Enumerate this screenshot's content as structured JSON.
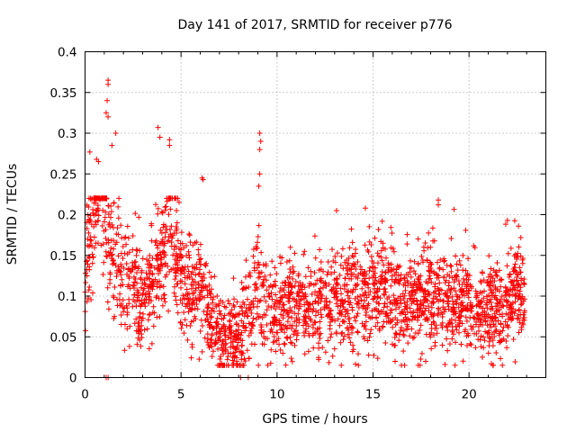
{
  "chart_data": {
    "type": "scatter",
    "title": "Day 141 of 2017, SRMTID for receiver p776",
    "xlabel": "GPS time / hours",
    "ylabel": "SRMTID / TECUs",
    "xlim": [
      0,
      24
    ],
    "ylim": [
      0,
      0.4
    ],
    "xticks": [
      0,
      5,
      10,
      15,
      20
    ],
    "xtick_labels": [
      "0",
      "5",
      "10",
      "15",
      "20"
    ],
    "yticks": [
      0,
      0.05,
      0.1,
      0.15,
      0.2,
      0.25,
      0.3,
      0.35,
      0.4
    ],
    "ytick_labels": [
      "0",
      "0.05",
      "0.1",
      "0.15",
      "0.2",
      "0.25",
      "0.3",
      "0.35",
      "0.4"
    ],
    "grid": true,
    "marker": "+",
    "color": "#ff0000",
    "series": [
      {
        "name": "SRMTID p776",
        "profile_x": [
          0,
          0.3,
          0.6,
          1.0,
          1.5,
          2.0,
          2.5,
          3.0,
          3.5,
          4.0,
          4.5,
          5.0,
          5.5,
          6.0,
          6.5,
          7.0,
          7.5,
          8.0,
          8.5,
          9.0,
          9.5,
          10.0,
          10.5,
          11.0,
          11.5,
          12.0,
          12.5,
          13.0,
          13.5,
          14.0,
          14.5,
          15.0,
          15.5,
          16.0,
          16.5,
          17.0,
          17.5,
          18.0,
          18.5,
          19.0,
          19.5,
          20.0,
          20.5,
          21.0,
          21.5,
          22.0,
          22.5,
          22.9
        ],
        "profile_y": [
          0.12,
          0.18,
          0.22,
          0.21,
          0.15,
          0.12,
          0.11,
          0.1,
          0.11,
          0.15,
          0.17,
          0.12,
          0.11,
          0.11,
          0.08,
          0.055,
          0.05,
          0.045,
          0.08,
          0.11,
          0.09,
          0.08,
          0.09,
          0.095,
          0.09,
          0.09,
          0.085,
          0.1,
          0.09,
          0.1,
          0.1,
          0.11,
          0.11,
          0.1,
          0.095,
          0.1,
          0.1,
          0.105,
          0.1,
          0.09,
          0.09,
          0.095,
          0.09,
          0.085,
          0.08,
          0.09,
          0.11,
          0.11
        ],
        "spread": 0.035,
        "count": 2600,
        "notable_points": [
          {
            "x": 1.2,
            "y": 0.365
          },
          {
            "x": 1.2,
            "y": 0.36
          },
          {
            "x": 1.15,
            "y": 0.34
          },
          {
            "x": 1.1,
            "y": 0.325
          },
          {
            "x": 1.2,
            "y": 0.32
          },
          {
            "x": 1.6,
            "y": 0.3
          },
          {
            "x": 1.4,
            "y": 0.285
          },
          {
            "x": 3.8,
            "y": 0.307
          },
          {
            "x": 3.9,
            "y": 0.295
          },
          {
            "x": 4.4,
            "y": 0.292
          },
          {
            "x": 4.4,
            "y": 0.285
          },
          {
            "x": 9.1,
            "y": 0.3
          },
          {
            "x": 9.15,
            "y": 0.29
          },
          {
            "x": 9.1,
            "y": 0.28
          },
          {
            "x": 9.1,
            "y": 0.25
          },
          {
            "x": 9.05,
            "y": 0.235
          },
          {
            "x": 0.25,
            "y": 0.277
          },
          {
            "x": 0.6,
            "y": 0.268
          },
          {
            "x": 0.7,
            "y": 0.265
          },
          {
            "x": 6.1,
            "y": 0.245
          },
          {
            "x": 6.15,
            "y": 0.243
          },
          {
            "x": 18.4,
            "y": 0.218
          },
          {
            "x": 18.4,
            "y": 0.212
          },
          {
            "x": 13.1,
            "y": 0.205
          },
          {
            "x": 14.6,
            "y": 0.208
          },
          {
            "x": 22.0,
            "y": 0.193
          },
          {
            "x": 1.1,
            "y": 0.0
          },
          {
            "x": 1.2,
            "y": 0.0
          },
          {
            "x": 8.1,
            "y": 0.0
          },
          {
            "x": 8.5,
            "y": 0.0
          },
          {
            "x": 7.9,
            "y": 0.02
          },
          {
            "x": 7.7,
            "y": 0.025
          }
        ]
      }
    ]
  }
}
